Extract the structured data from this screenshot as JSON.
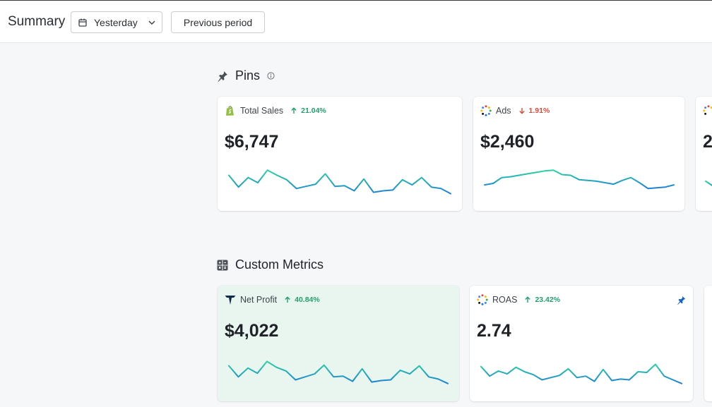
{
  "header": {
    "title": "Summary",
    "date_range": "Yesterday",
    "compare_button": "Previous period"
  },
  "pins": {
    "title": "Pins",
    "cards": [
      {
        "label": "Total Sales",
        "delta": "21.04%",
        "direction": "up",
        "value": "$6,747",
        "trend": [
          58,
          42,
          55,
          48,
          65,
          58,
          52,
          40,
          43,
          46,
          60,
          43,
          44,
          37,
          53,
          35,
          37,
          38,
          52,
          45,
          55,
          42,
          40,
          33
        ]
      },
      {
        "label": "Ads",
        "delta": "1.91%",
        "direction": "down",
        "value": "$2,460",
        "trend": [
          45,
          47,
          55,
          56,
          58,
          60,
          62,
          64,
          65,
          59,
          58,
          52,
          51,
          50,
          48,
          46,
          51,
          55,
          48,
          40,
          41,
          42,
          45
        ]
      },
      {
        "label": "",
        "value": "2",
        "trend": [
          50,
          40
        ]
      }
    ]
  },
  "custom_metrics": {
    "title": "Custom Metrics",
    "cards": [
      {
        "label": "Net Profit",
        "delta": "40.84%",
        "direction": "up",
        "value": "$4,022",
        "trend": [
          56,
          41,
          53,
          46,
          62,
          54,
          49,
          37,
          41,
          45,
          57,
          41,
          42,
          35,
          52,
          34,
          36,
          37,
          50,
          45,
          56,
          41,
          38,
          32
        ]
      },
      {
        "label": "ROAS",
        "delta": "23.42%",
        "direction": "up",
        "value": "2.74",
        "trend": [
          55,
          42,
          49,
          45,
          54,
          48,
          44,
          37,
          40,
          43,
          52,
          40,
          42,
          35,
          51,
          36,
          38,
          37,
          48,
          47,
          58,
          42,
          37,
          32
        ]
      }
    ]
  },
  "colors": {
    "positive": "#22a06b",
    "negative": "#d94b3b",
    "line_start": "#2bd3a0",
    "line_end": "#1d7fd6",
    "pin": "#1565c0"
  }
}
